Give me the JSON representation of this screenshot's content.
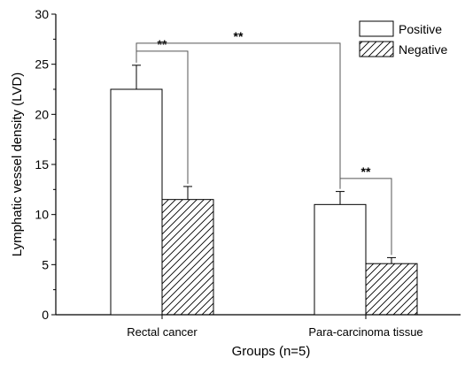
{
  "chart_data": {
    "type": "bar",
    "title": "",
    "xlabel": "Groups (n=5)",
    "ylabel": "Lymphatic vessel density (LVD)",
    "ylim": [
      0,
      30
    ],
    "yticks": [
      0,
      5,
      10,
      15,
      20,
      25,
      30
    ],
    "categories": [
      "Rectal cancer",
      "Para-carcinoma tissue"
    ],
    "legend_position": "top-right",
    "series": [
      {
        "name": "Positive",
        "pattern": "none",
        "values": [
          22.5,
          11.0
        ],
        "errors": [
          2.4,
          1.3
        ]
      },
      {
        "name": "Negative",
        "pattern": "diagonal-hatch",
        "values": [
          11.5,
          5.1
        ],
        "errors": [
          1.3,
          0.6
        ]
      }
    ],
    "annotations": [
      {
        "label": "**",
        "from": {
          "category": 0,
          "series": 0
        },
        "to": {
          "category": 0,
          "series": 1
        }
      },
      {
        "label": "**",
        "from": {
          "category": 0,
          "series": 0
        },
        "to": {
          "category": 1,
          "series": 0
        }
      },
      {
        "label": "**",
        "from": {
          "category": 1,
          "series": 0
        },
        "to": {
          "category": 1,
          "series": 1
        }
      }
    ],
    "grid": false
  }
}
